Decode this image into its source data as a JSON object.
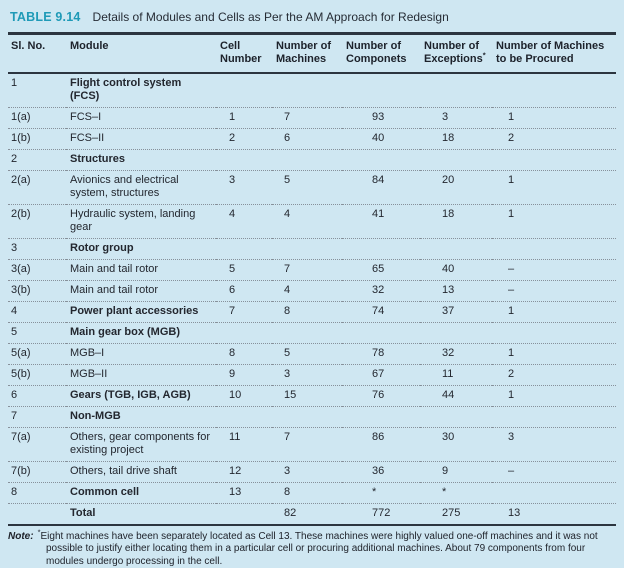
{
  "title": {
    "label": "TABLE 9.14",
    "text": "Details of Modules and Cells as Per the AM Approach for Redesign"
  },
  "table": {
    "columns": [
      {
        "key": "sl",
        "label": "Sl. No."
      },
      {
        "key": "module",
        "label": "Module"
      },
      {
        "key": "cell",
        "label": "Cell Number"
      },
      {
        "key": "machines",
        "label": "Number of Machines"
      },
      {
        "key": "componets",
        "label": "Number of Componets"
      },
      {
        "key": "exceptions",
        "label": "Number of Exceptions",
        "sup": "*"
      },
      {
        "key": "procured",
        "label": "Number of Machines to be Procured"
      }
    ],
    "rows": [
      {
        "sl": "1",
        "module": "Flight control system (FCS)",
        "bold": true,
        "group": true,
        "cell": "",
        "machines": "",
        "componets": "",
        "exceptions": "",
        "procured": ""
      },
      {
        "sl": "1(a)",
        "module": "FCS–I",
        "cell": "1",
        "machines": "7",
        "componets": "93",
        "exceptions": "3",
        "procured": "1"
      },
      {
        "sl": "1(b)",
        "module": "FCS–II",
        "cell": "2",
        "machines": "6",
        "componets": "40",
        "exceptions": "18",
        "procured": "2"
      },
      {
        "sl": "2",
        "module": "Structures",
        "bold": true,
        "group": true,
        "cell": "",
        "machines": "",
        "componets": "",
        "exceptions": "",
        "procured": ""
      },
      {
        "sl": "2(a)",
        "module": "Avionics and electrical system, structures",
        "cell": "3",
        "machines": "5",
        "componets": "84",
        "exceptions": "20",
        "procured": "1"
      },
      {
        "sl": "2(b)",
        "module": "Hydraulic system, landing gear",
        "cell": "4",
        "machines": "4",
        "componets": "41",
        "exceptions": "18",
        "procured": "1"
      },
      {
        "sl": "3",
        "module": "Rotor group",
        "bold": true,
        "group": true,
        "cell": "",
        "machines": "",
        "componets": "",
        "exceptions": "",
        "procured": ""
      },
      {
        "sl": "3(a)",
        "module": "Main and tail rotor",
        "cell": "5",
        "machines": "7",
        "componets": "65",
        "exceptions": "40",
        "procured": "–"
      },
      {
        "sl": "3(b)",
        "module": "Main and tail rotor",
        "cell": "6",
        "machines": "4",
        "componets": "32",
        "exceptions": "13",
        "procured": "–"
      },
      {
        "sl": "4",
        "module": "Power plant accessories",
        "bold": true,
        "cell": "7",
        "machines": "8",
        "componets": "74",
        "exceptions": "37",
        "procured": "1"
      },
      {
        "sl": "5",
        "module": "Main gear box (MGB)",
        "bold": true,
        "group": true,
        "cell": "",
        "machines": "",
        "componets": "",
        "exceptions": "",
        "procured": ""
      },
      {
        "sl": "5(a)",
        "module": "MGB–I",
        "cell": "8",
        "machines": "5",
        "componets": "78",
        "exceptions": "32",
        "procured": "1"
      },
      {
        "sl": "5(b)",
        "module": "MGB–II",
        "cell": "9",
        "machines": "3",
        "componets": "67",
        "exceptions": "11",
        "procured": "2"
      },
      {
        "sl": "6",
        "module": "Gears (TGB, IGB, AGB)",
        "bold": true,
        "cell": "10",
        "machines": "15",
        "componets": "76",
        "exceptions": "44",
        "procured": "1"
      },
      {
        "sl": "7",
        "module": "Non-MGB",
        "bold": true,
        "group": true,
        "cell": "",
        "machines": "",
        "componets": "",
        "exceptions": "",
        "procured": ""
      },
      {
        "sl": "7(a)",
        "module": "Others, gear components for existing project",
        "cell": "11",
        "machines": "7",
        "componets": "86",
        "exceptions": "30",
        "procured": "3"
      },
      {
        "sl": "7(b)",
        "module": "Others, tail drive shaft",
        "cell": "12",
        "machines": "3",
        "componets": "36",
        "exceptions": "9",
        "procured": "–"
      },
      {
        "sl": "8",
        "module": "Common cell",
        "bold": true,
        "cell": "13",
        "machines": "8",
        "componets": "*",
        "exceptions": "*",
        "procured": ""
      },
      {
        "sl": "",
        "module": "Total",
        "bold": true,
        "total": true,
        "cell": "",
        "machines": "82",
        "componets": "772",
        "exceptions": "275",
        "procured": "13"
      }
    ]
  },
  "footnote": {
    "label": "Note:",
    "marker": "*",
    "text": "Eight machines have been separately located as Cell 13. These machines were highly valued one-off machines and it was not possible to justify either locating them in a particular cell or procuring additional machines. About 79 components from four modules undergo processing in the cell."
  },
  "colors": {
    "background": "#cfe7f2",
    "accent_teal": "#1f9ab7",
    "text": "#20242c",
    "rule_dark": "#2c3540",
    "dotted_separator": "#87919b"
  }
}
